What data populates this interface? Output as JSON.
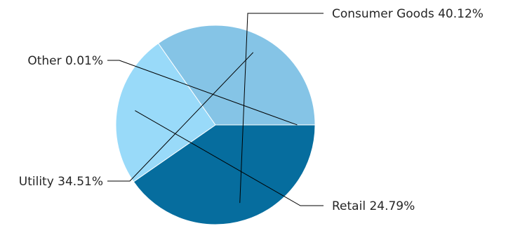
{
  "chart_data": {
    "type": "pie",
    "title": "",
    "slices": [
      {
        "label": "Consumer Goods",
        "value": 40.12,
        "display": "Consumer Goods 40.12%",
        "color": "#066d9e"
      },
      {
        "label": "Retail",
        "value": 24.79,
        "display": "Retail 24.79%",
        "color": "#99daf9"
      },
      {
        "label": "Utility",
        "value": 34.51,
        "display": "Utility 34.51%",
        "color": "#85c4e6"
      },
      {
        "label": "Other",
        "value": 0.01,
        "display": "Other 0.01%",
        "color": "#066d9e"
      }
    ],
    "start_angle_deg": 0,
    "direction": "clockwise",
    "legend": "none"
  }
}
